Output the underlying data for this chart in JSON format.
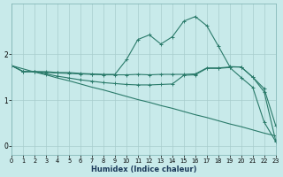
{
  "xlabel": "Humidex (Indice chaleur)",
  "bg_color": "#c8eaea",
  "line_color": "#2a7a6a",
  "grid_color": "#a8cccc",
  "xlim": [
    0,
    23
  ],
  "ylim": [
    -0.2,
    3.1
  ],
  "yticks": [
    0,
    1,
    2
  ],
  "xticks": [
    0,
    1,
    2,
    3,
    4,
    5,
    6,
    7,
    8,
    9,
    10,
    11,
    12,
    13,
    14,
    15,
    16,
    17,
    18,
    19,
    20,
    21,
    22,
    23
  ],
  "line1_x": [
    0,
    1,
    2,
    3,
    4,
    5,
    6,
    7,
    8,
    9,
    10,
    11,
    12,
    13,
    14,
    15,
    16,
    17,
    18,
    19,
    20,
    21,
    22,
    23
  ],
  "line1_y": [
    1.75,
    1.62,
    1.62,
    1.62,
    1.6,
    1.6,
    1.58,
    1.57,
    1.56,
    1.56,
    1.88,
    2.32,
    2.42,
    2.22,
    2.38,
    2.72,
    2.82,
    2.62,
    2.18,
    1.73,
    1.72,
    1.5,
    1.25,
    0.45
  ],
  "line2_x": [
    0,
    1,
    2,
    3,
    4,
    5,
    6,
    7,
    8,
    9,
    10,
    11,
    12,
    13,
    14,
    15,
    16,
    17,
    18,
    19,
    20,
    21,
    22,
    23
  ],
  "line2_y": [
    1.75,
    1.62,
    1.62,
    1.6,
    1.59,
    1.58,
    1.57,
    1.56,
    1.55,
    1.55,
    1.55,
    1.56,
    1.55,
    1.56,
    1.56,
    1.56,
    1.57,
    1.7,
    1.7,
    1.72,
    1.72,
    1.5,
    1.18,
    0.12
  ],
  "line3_x": [
    0,
    1,
    2,
    3,
    4,
    5,
    6,
    7,
    8,
    9,
    10,
    11,
    12,
    13,
    14,
    15,
    16,
    17,
    18,
    19,
    20,
    21,
    22,
    23
  ],
  "line3_y": [
    1.75,
    1.62,
    1.62,
    1.57,
    1.52,
    1.48,
    1.44,
    1.41,
    1.38,
    1.36,
    1.34,
    1.33,
    1.33,
    1.34,
    1.35,
    1.54,
    1.55,
    1.69,
    1.69,
    1.71,
    1.49,
    1.28,
    0.52,
    0.1
  ],
  "line4_x": [
    0,
    1,
    2,
    3,
    4,
    5,
    6,
    7,
    8,
    9,
    10,
    11,
    12,
    13,
    14,
    15,
    16,
    17,
    18,
    19,
    20,
    21,
    22,
    23
  ],
  "line4_y": [
    1.75,
    1.68,
    1.61,
    1.55,
    1.48,
    1.42,
    1.35,
    1.28,
    1.22,
    1.15,
    1.08,
    1.01,
    0.95,
    0.88,
    0.82,
    0.75,
    0.68,
    0.62,
    0.55,
    0.48,
    0.42,
    0.35,
    0.28,
    0.22
  ]
}
